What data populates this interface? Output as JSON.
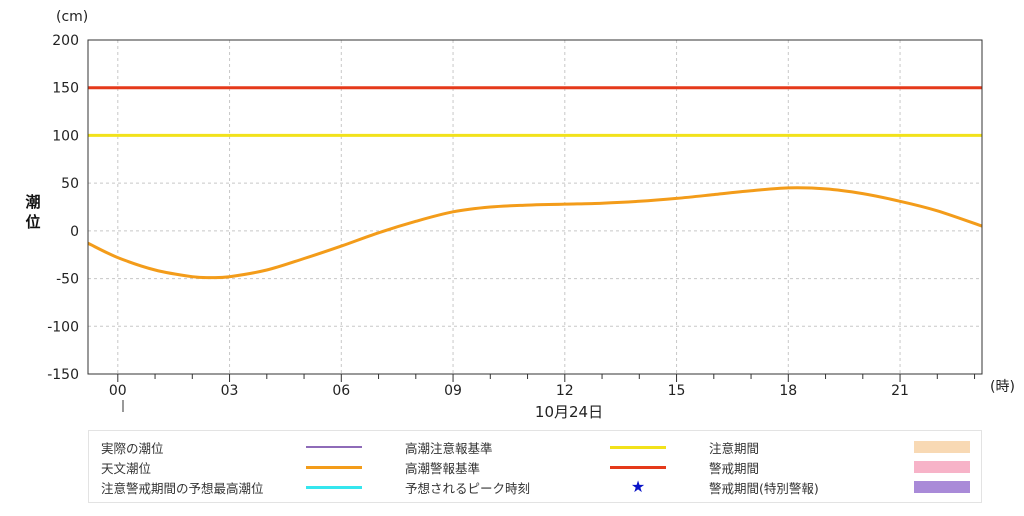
{
  "chart_data": {
    "type": "line",
    "y_unit": "(cm)",
    "ylabel": "潮位",
    "x_unit": "(時)",
    "date_label": "10月24日",
    "ylim": [
      -150,
      200
    ],
    "y_ticks": [
      "200",
      "150",
      "100",
      "50",
      "0",
      "-50",
      "-100",
      "-150"
    ],
    "y_tick_values": [
      200,
      150,
      100,
      50,
      0,
      -50,
      -100,
      -150
    ],
    "xlim": [
      -0.8,
      23.2
    ],
    "x_ticks": [
      "00",
      "03",
      "06",
      "09",
      "12",
      "15",
      "18",
      "21"
    ],
    "x_tick_values": [
      0,
      3,
      6,
      9,
      12,
      15,
      18,
      21
    ],
    "grid": true,
    "series": [
      {
        "name": "天文潮位",
        "color": "#f39c1a",
        "x": [
          -0.8,
          0,
          1,
          2,
          2.5,
          3,
          4,
          5,
          6,
          7,
          8,
          9,
          10,
          11,
          12,
          13,
          14,
          15,
          16,
          17,
          18,
          19,
          20,
          21,
          22,
          23.2
        ],
        "y": [
          -13,
          -28,
          -41,
          -48,
          -49,
          -48,
          -41,
          -29,
          -16,
          -2,
          10,
          20,
          25,
          27,
          28,
          29,
          31,
          34,
          38,
          42,
          45,
          44,
          39,
          31,
          21,
          5
        ]
      }
    ],
    "reference_lines": [
      {
        "name": "高潮注意報基準",
        "value": 100,
        "color": "#f2e21b"
      },
      {
        "name": "高潮警報基準",
        "value": 150,
        "color": "#e5391a"
      }
    ]
  },
  "legend": {
    "items": [
      {
        "label": "実際の潮位",
        "swatch": "thin-line",
        "color": "#8e6bb8"
      },
      {
        "label": "天文潮位",
        "swatch": "line",
        "color": "#f39c1a"
      },
      {
        "label": "注意警戒期間の予想最高潮位",
        "swatch": "line",
        "color": "#35e6ee"
      },
      {
        "label": "高潮注意報基準",
        "swatch": "line",
        "color": "#f2e21b"
      },
      {
        "label": "高潮警報基準",
        "swatch": "line",
        "color": "#e5391a"
      },
      {
        "label": "予想されるピーク時刻",
        "swatch": "star",
        "color": "#0a14c8",
        "symbol": "★"
      },
      {
        "label": "注意期間",
        "swatch": "box",
        "color": "#f8d9b4"
      },
      {
        "label": "警戒期間",
        "swatch": "box",
        "color": "#f7b3c8"
      },
      {
        "label": "警戒期間(特別警報)",
        "swatch": "box",
        "color": "#a98ad8"
      }
    ]
  }
}
